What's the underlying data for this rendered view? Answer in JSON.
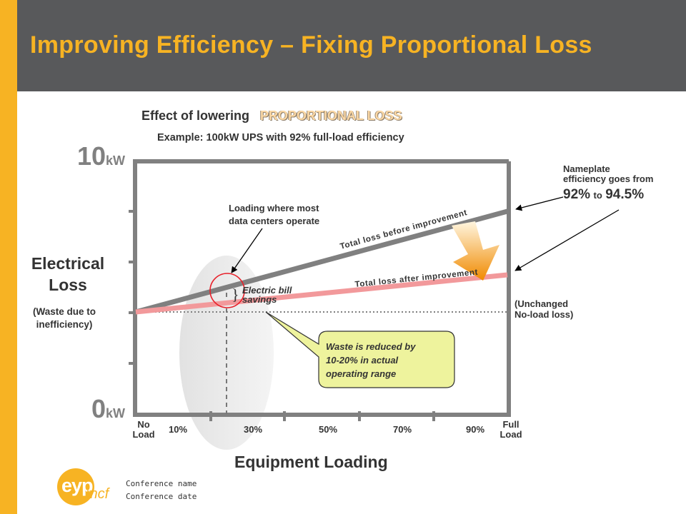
{
  "slide": {
    "title": "Improving Efficiency – Fixing Proportional Loss",
    "colors": {
      "accent": "#f7b323",
      "header_bg": "#58595b",
      "before_line": "#808080",
      "after_line": "#f2999b",
      "callout_bg": "#eef39d",
      "frame": "#808080"
    }
  },
  "diagram": {
    "heading_prefix": "Effect of lowering",
    "heading_highlight": "PROPORTIONAL LOSS",
    "subheading": "Example:  100kW UPS with 92% full-load efficiency",
    "y_top_number": "10",
    "y_top_unit": "kW",
    "y_bottom_number": "0",
    "y_bottom_unit": "kW",
    "y_label_line1": "Electrical",
    "y_label_line2": "Loss",
    "y_sublabel_line1": "(Waste due to",
    "y_sublabel_line2": "inefficiency)",
    "x_label": "Equipment Loading",
    "x_ticks": [
      {
        "line1": "No",
        "line2": "Load"
      },
      {
        "line1": "10%",
        "line2": ""
      },
      {
        "line1": "30%",
        "line2": ""
      },
      {
        "line1": "50%",
        "line2": ""
      },
      {
        "line1": "70%",
        "line2": ""
      },
      {
        "line1": "90%",
        "line2": ""
      },
      {
        "line1": "Full",
        "line2": "Load"
      }
    ],
    "line_before_label": "Total loss before improvement",
    "line_after_label": "Total loss after improvement",
    "annotation_loading_line1": "Loading where most",
    "annotation_loading_line2": "data centers operate",
    "annotation_savings_line1": "Electric bill",
    "annotation_savings_line2": "savings",
    "nameplate_line1": "Nameplate",
    "nameplate_line2": "efficiency goes from",
    "nameplate_from": "92%",
    "nameplate_to_word": "to",
    "nameplate_to": "94.5%",
    "noload_line1": "(Unchanged",
    "noload_line2": "No-load loss)",
    "callout_line1": "Waste is reduced by",
    "callout_line2": "10-20% in actual",
    "callout_line3": "operating range",
    "savings_bracket": "}"
  },
  "footer": {
    "logo_main": "eyp",
    "logo_sub": "mcf",
    "conference_name": "Conference name",
    "conference_date": "Conference date"
  }
}
